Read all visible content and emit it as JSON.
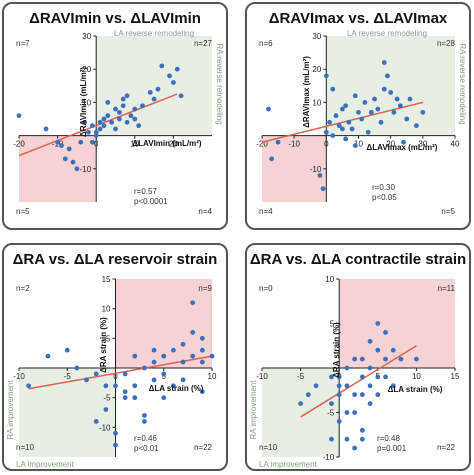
{
  "panels": [
    {
      "title": "ΔRAVImin vs. ΔLAVImin",
      "xlabel": "ΔLAVImin (mL/m²)",
      "ylabel": "ΔRAVImin (mL/m²)",
      "quadrant_labels": {
        "top_left": "n=7",
        "top_right": "n=27",
        "bottom_left": "n=5",
        "bottom_right": "n=4"
      },
      "region_labels": {
        "top": "LA reverse remodeling",
        "right": "RA reverse remodeling"
      },
      "stats": {
        "r": "r=0.57",
        "p": "p<0.0001"
      },
      "colors": {
        "highlight_top_right": "#e6efe2",
        "highlight_bottom_left": "#f6d2d4"
      }
    },
    {
      "title": "ΔRAVImax vs. ΔLAVImax",
      "xlabel": "ΔLAVImax (mL/m²)",
      "ylabel": "ΔRAVImax (mL/m²)",
      "quadrant_labels": {
        "top_left": "n=6",
        "top_right": "n=28",
        "bottom_left": "n=4",
        "bottom_right": "n=5"
      },
      "region_labels": {
        "top": "LA reverse remodeling",
        "right": "RA reverse remodeling"
      },
      "stats": {
        "r": "r=0.30",
        "p": "p<0.05"
      },
      "colors": {
        "highlight_top_right": "#e6efe2",
        "highlight_bottom_left": "#f6d2d4"
      }
    },
    {
      "title": "ΔRA vs. ΔLA reservoir strain",
      "xlabel": "ΔLA strain (%)",
      "ylabel": "ΔRA strain (%)",
      "quadrant_labels": {
        "top_left": "n=2",
        "top_right": "n=9",
        "bottom_left": "n=10",
        "bottom_right": "n=22"
      },
      "region_labels": {
        "left": "RA improvement",
        "bottom": "LA improvement"
      },
      "stats": {
        "r": "r=0.46",
        "p": "p<0.01"
      },
      "colors": {
        "highlight_top_right": "#f6d2d4",
        "highlight_bottom_left": "#e6efe2"
      }
    },
    {
      "title": "ΔRA vs. ΔLA contractile strain",
      "xlabel": "ΔLA strain (%)",
      "ylabel": "ΔRA strain (%)",
      "quadrant_labels": {
        "top_left": "n=0",
        "top_right": "n=11",
        "bottom_left": "n=10",
        "bottom_right": "n=22"
      },
      "region_labels": {
        "left": "RA improvement",
        "bottom": "LA improvement"
      },
      "stats": {
        "r": "r=0.48",
        "p": "p=0.001"
      },
      "colors": {
        "highlight_top_right": "#f6d2d4",
        "highlight_bottom_left": "#e6efe2"
      }
    }
  ],
  "chart_data": [
    {
      "type": "scatter",
      "title": "ΔRAVImin vs. ΔLAVImin",
      "xlabel": "ΔLAVImin (mL/m²)",
      "ylabel": "ΔRAVImin (mL/m²)",
      "xlim": [
        -20,
        30
      ],
      "ylim": [
        -20,
        30
      ],
      "xticks": [
        -20,
        -10,
        0,
        10,
        20
      ],
      "yticks": [
        -10,
        10,
        20,
        30
      ],
      "x_tick_labels": [
        "-20",
        "-10",
        "0",
        "10",
        "20"
      ],
      "y_tick_labels": [
        "-10",
        "10",
        "20",
        "30"
      ],
      "fit_line": {
        "x": [
          -20,
          21
        ],
        "y": [
          -6,
          12.5
        ]
      },
      "points": [
        [
          -20,
          6
        ],
        [
          -13,
          2
        ],
        [
          -10,
          -2
        ],
        [
          -9,
          -3
        ],
        [
          -8,
          -7
        ],
        [
          -7,
          -4
        ],
        [
          -6,
          -8
        ],
        [
          -5,
          -10
        ],
        [
          -4,
          -2
        ],
        [
          -3,
          4
        ],
        [
          -2,
          1
        ],
        [
          -1,
          3
        ],
        [
          0,
          0
        ],
        [
          0,
          1
        ],
        [
          1,
          4
        ],
        [
          1,
          2
        ],
        [
          2,
          3
        ],
        [
          2,
          5
        ],
        [
          3,
          10
        ],
        [
          3,
          6
        ],
        [
          4,
          4
        ],
        [
          5,
          8
        ],
        [
          5,
          2
        ],
        [
          6,
          5
        ],
        [
          6,
          7
        ],
        [
          7,
          11
        ],
        [
          7,
          9
        ],
        [
          8,
          12
        ],
        [
          8,
          4
        ],
        [
          9,
          6
        ],
        [
          10,
          8
        ],
        [
          10,
          5
        ],
        [
          11,
          3
        ],
        [
          12,
          9
        ],
        [
          14,
          13
        ],
        [
          15,
          11
        ],
        [
          16,
          14
        ],
        [
          17,
          21
        ],
        [
          19,
          18
        ],
        [
          20,
          16
        ],
        [
          21,
          20
        ],
        [
          22,
          12
        ],
        [
          -1,
          -2
        ]
      ]
    },
    {
      "type": "scatter",
      "title": "ΔRAVImax vs. ΔLAVImax",
      "xlabel": "ΔLAVImax (mL/m²)",
      "ylabel": "ΔRAVImax (mL/m²)",
      "xlim": [
        -20,
        40
      ],
      "ylim": [
        -20,
        30
      ],
      "xticks": [
        -20,
        -10,
        0,
        10,
        20,
        30,
        40
      ],
      "yticks": [
        -10,
        10,
        20,
        30
      ],
      "x_tick_labels": [
        "-20",
        "-10",
        "0",
        "10",
        "20",
        "30",
        "40"
      ],
      "y_tick_labels": [
        "-10",
        "10",
        "20",
        "30"
      ],
      "fit_line": {
        "x": [
          -20,
          30
        ],
        "y": [
          -2,
          10
        ]
      },
      "points": [
        [
          -18,
          8
        ],
        [
          -17,
          -7
        ],
        [
          -15,
          -2
        ],
        [
          -2,
          -12
        ],
        [
          -1,
          -16
        ],
        [
          0,
          1
        ],
        [
          1,
          4
        ],
        [
          2,
          0
        ],
        [
          3,
          6
        ],
        [
          4,
          3
        ],
        [
          5,
          8
        ],
        [
          5,
          2
        ],
        [
          6,
          9
        ],
        [
          7,
          4
        ],
        [
          8,
          2
        ],
        [
          9,
          12
        ],
        [
          10,
          7
        ],
        [
          11,
          5
        ],
        [
          12,
          10
        ],
        [
          13,
          1
        ],
        [
          14,
          7
        ],
        [
          15,
          11
        ],
        [
          16,
          8
        ],
        [
          17,
          4
        ],
        [
          18,
          14
        ],
        [
          18,
          22
        ],
        [
          19,
          18
        ],
        [
          20,
          13
        ],
        [
          21,
          7
        ],
        [
          22,
          11
        ],
        [
          23,
          9
        ],
        [
          24,
          -2
        ],
        [
          25,
          5
        ],
        [
          26,
          11
        ],
        [
          28,
          3
        ],
        [
          30,
          7
        ],
        [
          0,
          18
        ],
        [
          2,
          14
        ],
        [
          9,
          -3
        ],
        [
          6,
          -1
        ]
      ]
    },
    {
      "type": "scatter",
      "title": "ΔRA vs. ΔLA reservoir strain",
      "xlabel": "ΔLA strain (%)",
      "ylabel": "ΔRA strain (%)",
      "xlim": [
        -10,
        10
      ],
      "ylim": [
        -15,
        15
      ],
      "xticks": [
        -10,
        -5,
        0,
        5,
        10
      ],
      "yticks": [
        -10,
        -5,
        5,
        10,
        15
      ],
      "x_tick_labels": [
        "-10",
        "-5",
        "0",
        "5",
        "10"
      ],
      "y_tick_labels": [
        "-10",
        "-5",
        "5",
        "10",
        "15"
      ],
      "fit_line": {
        "x": [
          -9,
          10
        ],
        "y": [
          -3.5,
          2
        ]
      },
      "points": [
        [
          -9,
          -3
        ],
        [
          -7,
          2
        ],
        [
          -5,
          3
        ],
        [
          -4,
          0
        ],
        [
          -3,
          -2
        ],
        [
          -2,
          -1
        ],
        [
          -1,
          -3
        ],
        [
          -1,
          -7
        ],
        [
          0,
          -3
        ],
        [
          0,
          -11
        ],
        [
          0,
          -13
        ],
        [
          1,
          -1
        ],
        [
          1,
          -4
        ],
        [
          1,
          -5
        ],
        [
          2,
          2
        ],
        [
          2,
          -5
        ],
        [
          2,
          -3
        ],
        [
          3,
          0
        ],
        [
          3,
          -8
        ],
        [
          4,
          1
        ],
        [
          4,
          -2
        ],
        [
          4,
          3
        ],
        [
          5,
          2
        ],
        [
          5,
          -1
        ],
        [
          5,
          -5
        ],
        [
          6,
          3
        ],
        [
          6,
          -3
        ],
        [
          7,
          4
        ],
        [
          7,
          1
        ],
        [
          7,
          -2
        ],
        [
          8,
          11
        ],
        [
          8,
          6
        ],
        [
          8,
          2
        ],
        [
          9,
          3
        ],
        [
          9,
          -4
        ],
        [
          9,
          1
        ],
        [
          9,
          5
        ],
        [
          10,
          2
        ],
        [
          -2,
          -9
        ],
        [
          3,
          -9
        ]
      ]
    },
    {
      "type": "scatter",
      "title": "ΔRA vs. ΔLA contractile strain",
      "xlabel": "ΔLA strain (%)",
      "ylabel": "ΔRA strain (%)",
      "xlim": [
        -10,
        15
      ],
      "ylim": [
        -10,
        10
      ],
      "xticks": [
        -10,
        -5,
        0,
        5,
        10,
        15
      ],
      "yticks": [
        -10,
        -5,
        5,
        10
      ],
      "x_tick_labels": [
        "-10",
        "-5",
        "0",
        "5",
        "10",
        "15"
      ],
      "y_tick_labels": [
        "-10",
        "-5",
        "5",
        "10"
      ],
      "fit_line": {
        "x": [
          -5,
          10
        ],
        "y": [
          -5.5,
          2.5
        ]
      },
      "points": [
        [
          -5,
          -4
        ],
        [
          -4,
          -3
        ],
        [
          -3,
          -2
        ],
        [
          -1,
          -1
        ],
        [
          -1,
          -4
        ],
        [
          0,
          -2
        ],
        [
          0,
          -3
        ],
        [
          0,
          -6
        ],
        [
          1,
          0
        ],
        [
          1,
          -2
        ],
        [
          1,
          -5
        ],
        [
          1,
          -8
        ],
        [
          2,
          1
        ],
        [
          2,
          -3
        ],
        [
          2,
          -5
        ],
        [
          3,
          1
        ],
        [
          3,
          -1
        ],
        [
          3,
          -3
        ],
        [
          3,
          -7
        ],
        [
          4,
          3
        ],
        [
          4,
          0
        ],
        [
          4,
          -2
        ],
        [
          4,
          -4
        ],
        [
          5,
          5
        ],
        [
          5,
          2
        ],
        [
          5,
          -1
        ],
        [
          5,
          -3
        ],
        [
          6,
          4
        ],
        [
          6,
          1
        ],
        [
          6,
          -1
        ],
        [
          7,
          2
        ],
        [
          7,
          -2
        ],
        [
          8,
          1
        ],
        [
          10,
          1
        ],
        [
          -1,
          -8
        ],
        [
          2,
          -9
        ],
        [
          3,
          -8
        ],
        [
          0,
          -1
        ]
      ]
    }
  ]
}
